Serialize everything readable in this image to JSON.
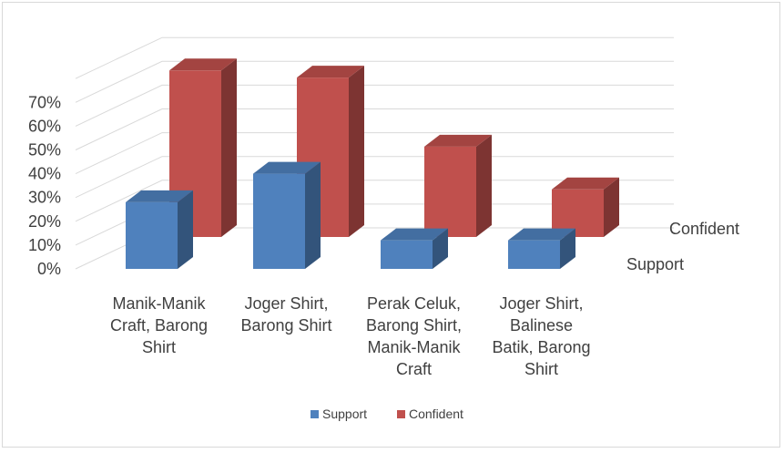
{
  "chart_data": {
    "type": "bar",
    "subtype": "3d-column",
    "categories": [
      [
        "Manik-Manik",
        "Craft, Barong",
        "Shirt"
      ],
      [
        "Joger Shirt,",
        "Barong Shirt"
      ],
      [
        "Perak Celuk,",
        "Barong Shirt,",
        "Manik-Manik",
        "Craft"
      ],
      [
        "Joger Shirt,",
        "Balinese",
        "Batik, Barong",
        "Shirt"
      ]
    ],
    "series": [
      {
        "name": "Support",
        "values": [
          28,
          40,
          12,
          12
        ],
        "color": "#4f81bd"
      },
      {
        "name": "Confident",
        "values": [
          70,
          67,
          38,
          20
        ],
        "color": "#c0504d"
      }
    ],
    "y_ticks": [
      "0%",
      "10%",
      "20%",
      "30%",
      "40%",
      "50%",
      "60%",
      "70%"
    ],
    "ylim": [
      0,
      70
    ],
    "y_unit": "%",
    "depth_labels": [
      "Confident",
      "Support"
    ],
    "legend": {
      "position": "bottom",
      "items": [
        "Support",
        "Confident"
      ]
    },
    "grid": true
  }
}
